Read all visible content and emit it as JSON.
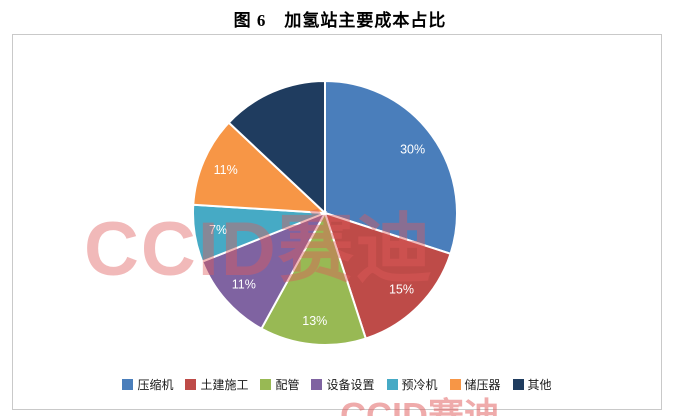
{
  "title": "图 6　加氢站主要成本占比",
  "watermark": {
    "text": "CCID赛迪",
    "color": "#e05a5a"
  },
  "chart_data": {
    "type": "pie",
    "title": "加氢站主要成本占比",
    "figure_label": "图 6",
    "direction": "clockwise",
    "start_angle_deg": 0,
    "legend_position": "bottom",
    "grid": false,
    "slices": [
      {
        "label": "压缩机",
        "value": 30,
        "color": "#4a7ebb",
        "data_label": "30%"
      },
      {
        "label": "土建施工",
        "value": 15,
        "color": "#be4b48",
        "data_label": "15%"
      },
      {
        "label": "配管",
        "value": 13,
        "color": "#98b954",
        "data_label": "13%"
      },
      {
        "label": "设备设置",
        "value": 11,
        "color": "#7f63a1",
        "data_label": "11%"
      },
      {
        "label": "预冷机",
        "value": 7,
        "color": "#46aac5",
        "data_label": "7%"
      },
      {
        "label": "储压器",
        "value": 11,
        "color": "#f79646",
        "data_label": "11%"
      },
      {
        "label": "其他",
        "value": 13,
        "color": "#1f3c5f",
        "data_label": ""
      }
    ]
  }
}
